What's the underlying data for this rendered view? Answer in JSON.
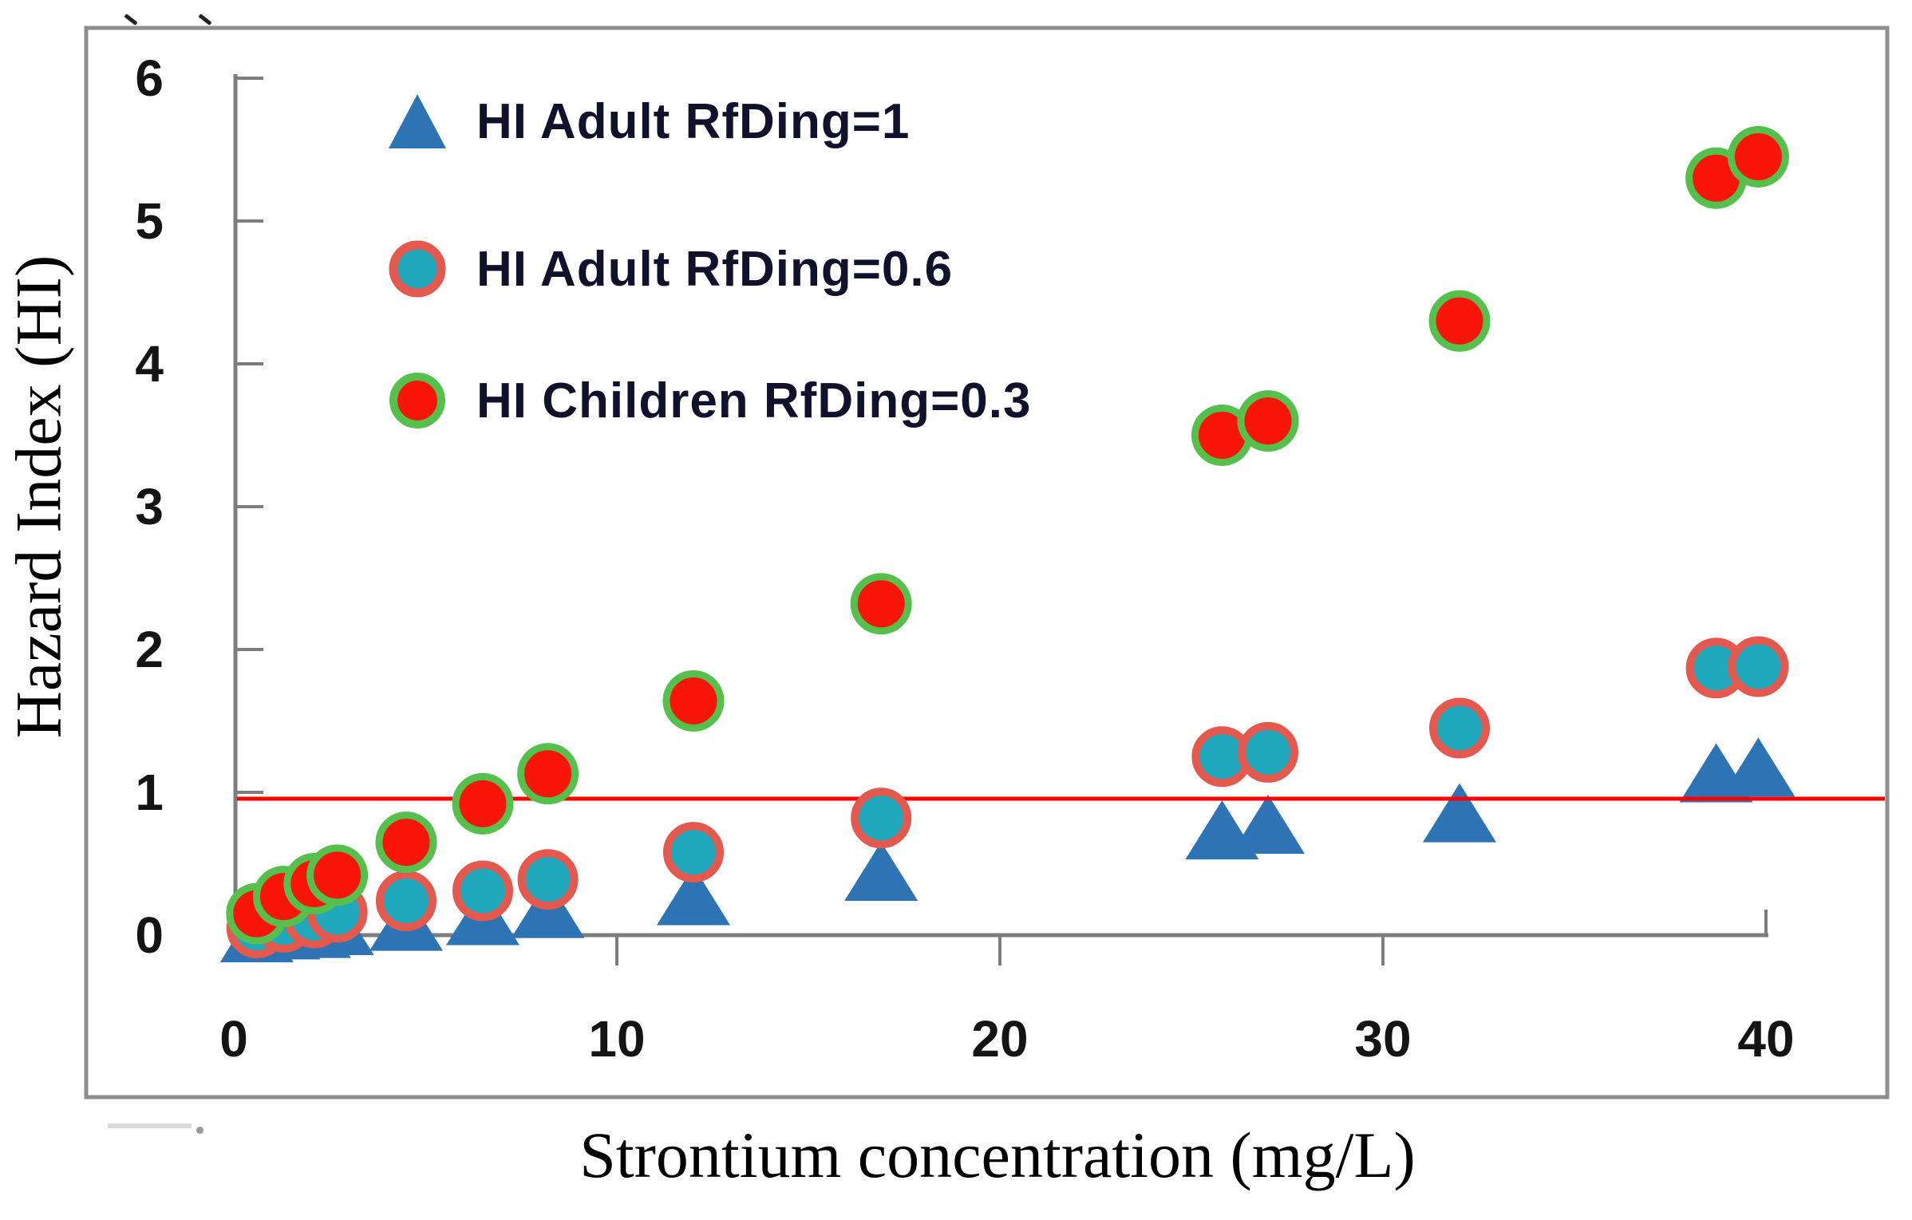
{
  "figure": {
    "y_axis_title": "Hazard Index (HI)",
    "x_axis_title": "Strontium concentration (mg/L)",
    "y_tick_labels": [
      "6",
      "5",
      "4",
      "3",
      "2",
      "1",
      "0"
    ],
    "x_tick_labels": [
      "0",
      "10",
      "20",
      "30",
      "40"
    ],
    "colors": {
      "adult_rfd1_triangle": "#2E74B5",
      "adult_rfd06_fill": "#1FA8BC",
      "adult_rfd06_ring": "#E4584E",
      "children_rfd03_fill": "#FA150A",
      "children_rfd03_ring": "#55C04B",
      "threshold_line": "#FF0000",
      "axis_gray": "#8E8E8E"
    }
  },
  "chart_data": {
    "type": "scatter",
    "title": "",
    "xlabel": "Strontium concentration (mg/L)",
    "ylabel": "Hazard Index (HI)",
    "xlim": [
      0,
      43
    ],
    "ylim": [
      0,
      6.1
    ],
    "x_ticks": [
      0,
      10,
      20,
      30,
      40
    ],
    "y_ticks": [
      0,
      1,
      2,
      3,
      4,
      5,
      6
    ],
    "grid": false,
    "legend_position": "top-left",
    "x": [
      0.6,
      1.3,
      2.1,
      2.7,
      4.5,
      6.5,
      8.2,
      12,
      16.9,
      25.8,
      27,
      32,
      38.7,
      39.8
    ],
    "series": [
      {
        "name": "HI Adult RfDing=1",
        "marker": "triangle",
        "color": "#2E74B5",
        "values": [
          0.0,
          0.02,
          0.03,
          0.05,
          0.08,
          0.12,
          0.17,
          0.26,
          0.43,
          0.72,
          0.76,
          0.84,
          1.12,
          1.16
        ]
      },
      {
        "name": "HI Adult RfDing=0.6",
        "marker": "circle",
        "color": "#1FA8BC",
        "outline": "#E4584E",
        "values": [
          0.05,
          0.09,
          0.12,
          0.16,
          0.24,
          0.31,
          0.39,
          0.58,
          0.82,
          1.25,
          1.28,
          1.45,
          1.87,
          1.88
        ]
      },
      {
        "name": "HI Children RfDing=0.3",
        "marker": "circle",
        "color": "#FA150A",
        "outline": "#55C04B",
        "values": [
          0.15,
          0.27,
          0.36,
          0.42,
          0.65,
          0.92,
          1.13,
          1.64,
          2.32,
          3.5,
          3.6,
          4.3,
          5.3,
          5.45
        ]
      }
    ],
    "threshold_line": {
      "y": 1,
      "color": "#FF0000"
    },
    "legend": [
      {
        "label": "HI Adult RfDing=1"
      },
      {
        "label": "HI Adult RfDing=0.6"
      },
      {
        "label": "HI Children RfDing=0.3"
      }
    ]
  }
}
